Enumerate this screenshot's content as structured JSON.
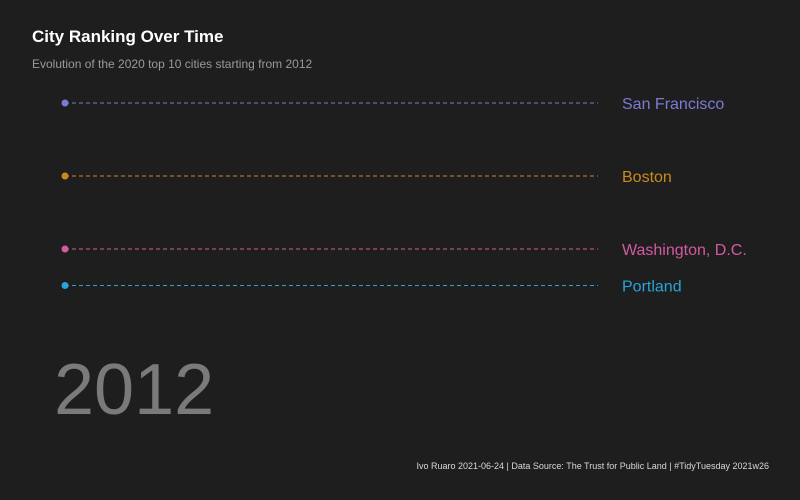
{
  "title": "City Ranking Over Time",
  "subtitle": "Evolution of the 2020 top 10 cities starting from 2012",
  "year": "2012",
  "caption": "Ivo Ruaro 2021-06-24 | Data Source: The Trust for Public Land | #TidyTuesday 2021w26",
  "chart_data": {
    "type": "line",
    "title": "City Ranking Over Time",
    "subtitle": "Evolution of the 2020 top 10 cities starting from 2012",
    "x": [
      2012
    ],
    "xlabel": "",
    "ylabel": "",
    "y_reversed": true,
    "ylim": [
      1,
      6
    ],
    "grid": false,
    "legend": "direct labels at right end of lines",
    "line_style": "dashed",
    "series": [
      {
        "name": "San Francisco",
        "values": [
          1
        ],
        "color": "#7b7bd6"
      },
      {
        "name": "Boston",
        "values": [
          2
        ],
        "color": "#c98a1c"
      },
      {
        "name": "Washington, D.C.",
        "values": [
          3
        ],
        "color": "#d45aa0"
      },
      {
        "name": "Portland",
        "values": [
          3.5
        ],
        "color": "#2aa3d9"
      }
    ]
  }
}
